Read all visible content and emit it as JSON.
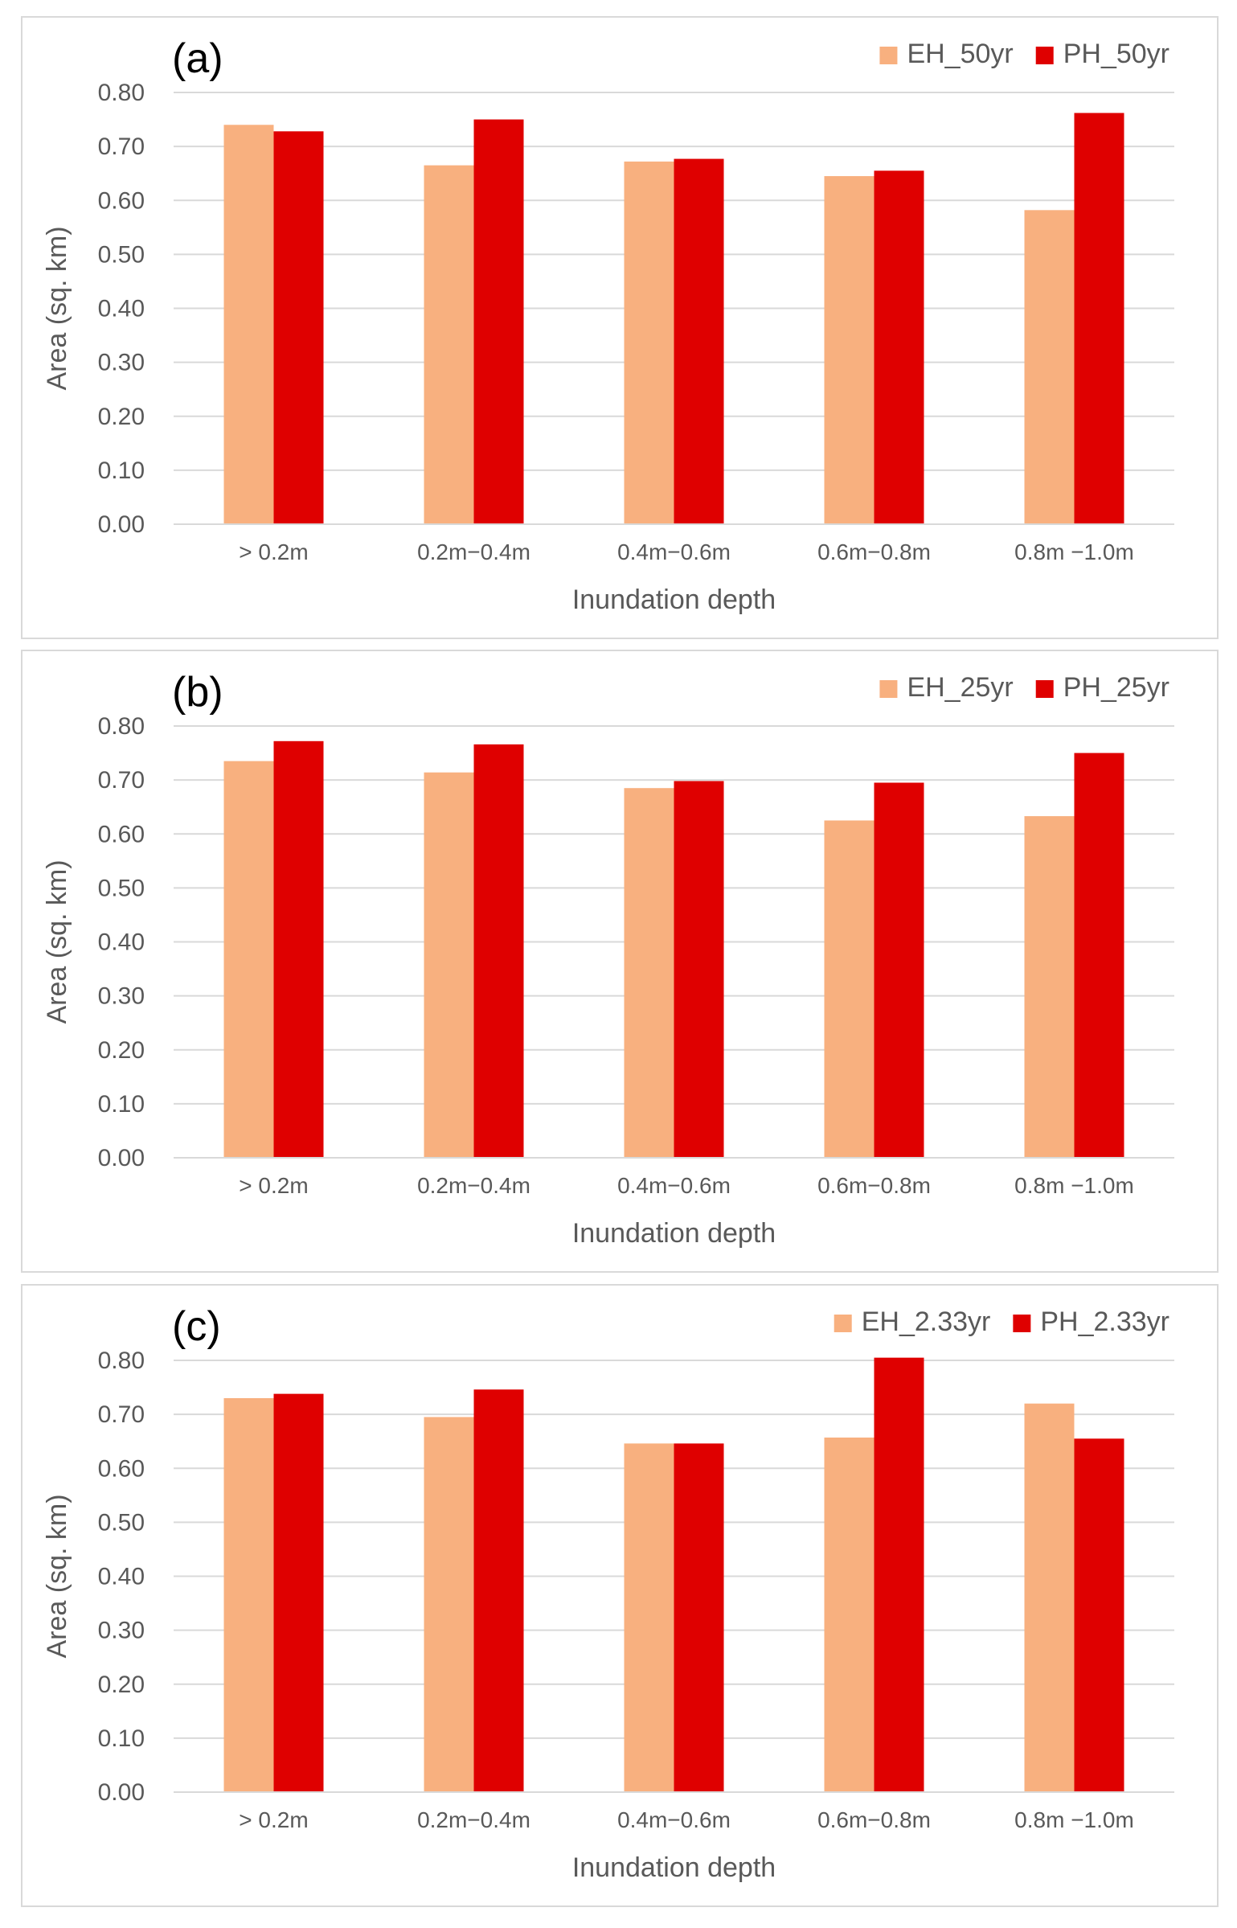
{
  "chart_data": [
    {
      "type": "bar",
      "panel_label": "(a)",
      "categories": [
        "> 0.2m",
        "0.2m−0.4m",
        "0.4m−0.6m",
        "0.6m−0.8m",
        "0.8m −1.0m"
      ],
      "series": [
        {
          "name": "EH_50yr",
          "color": "#f8b07f",
          "values": [
            0.74,
            0.665,
            0.672,
            0.645,
            0.582
          ]
        },
        {
          "name": "PH_50yr",
          "color": "#df0000",
          "values": [
            0.728,
            0.75,
            0.677,
            0.655,
            0.762
          ]
        }
      ],
      "title": "",
      "xlabel": "Inundation depth",
      "ylabel": "Area (sq. km)",
      "ylim": [
        0,
        0.8
      ],
      "yticks": [
        "0.00",
        "0.10",
        "0.20",
        "0.30",
        "0.40",
        "0.50",
        "0.60",
        "0.70",
        "0.80"
      ],
      "grid": true,
      "legend": "top-right"
    },
    {
      "type": "bar",
      "panel_label": "(b)",
      "categories": [
        "> 0.2m",
        "0.2m−0.4m",
        "0.4m−0.6m",
        "0.6m−0.8m",
        "0.8m −1.0m"
      ],
      "series": [
        {
          "name": "EH_25yr",
          "color": "#f8b07f",
          "values": [
            0.735,
            0.714,
            0.685,
            0.625,
            0.633
          ]
        },
        {
          "name": "PH_25yr",
          "color": "#df0000",
          "values": [
            0.772,
            0.766,
            0.698,
            0.695,
            0.75
          ]
        }
      ],
      "title": "",
      "xlabel": "Inundation depth",
      "ylabel": "Area (sq. km)",
      "ylim": [
        0,
        0.8
      ],
      "yticks": [
        "0.00",
        "0.10",
        "0.20",
        "0.30",
        "0.40",
        "0.50",
        "0.60",
        "0.70",
        "0.80"
      ],
      "grid": true,
      "legend": "top-right"
    },
    {
      "type": "bar",
      "panel_label": "(c)",
      "categories": [
        "> 0.2m",
        "0.2m−0.4m",
        "0.4m−0.6m",
        "0.6m−0.8m",
        "0.8m −1.0m"
      ],
      "series": [
        {
          "name": "EH_2.33yr",
          "color": "#f8b07f",
          "values": [
            0.73,
            0.695,
            0.646,
            0.657,
            0.72
          ]
        },
        {
          "name": "PH_2.33yr",
          "color": "#df0000",
          "values": [
            0.738,
            0.746,
            0.646,
            0.805,
            0.655
          ]
        }
      ],
      "title": "",
      "xlabel": "Inundation depth",
      "ylabel": "Area (sq. km)",
      "ylim": [
        0,
        0.8
      ],
      "yticks": [
        "0.00",
        "0.10",
        "0.20",
        "0.30",
        "0.40",
        "0.50",
        "0.60",
        "0.70",
        "0.80"
      ],
      "grid": true,
      "legend": "top-right"
    }
  ]
}
